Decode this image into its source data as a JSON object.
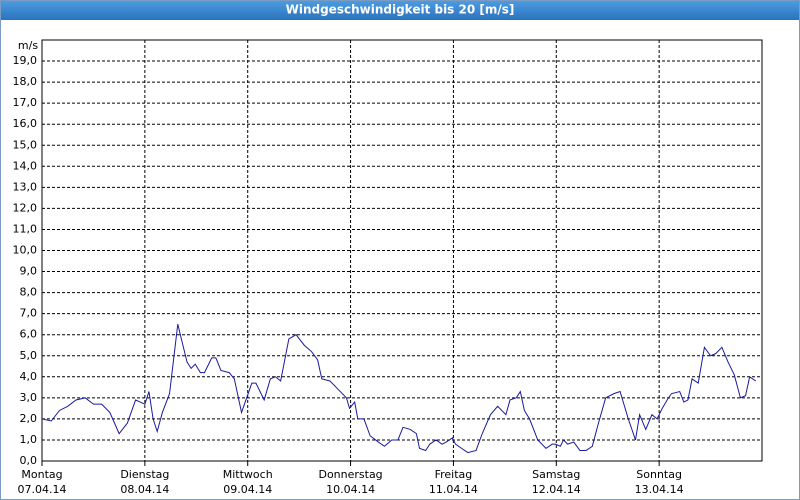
{
  "chart_data": {
    "type": "line",
    "title": "Windgeschwindigkeit bis 20 [m/s]",
    "y_unit": "m/s",
    "xlim": [
      0,
      7
    ],
    "xticks": [
      {
        "value": 0,
        "label": "Montag",
        "date": "07.04.14"
      },
      {
        "value": 1,
        "label": "Dienstag",
        "date": "08.04.14"
      },
      {
        "value": 2,
        "label": "Mittwoch",
        "date": "09.04.14"
      },
      {
        "value": 3,
        "label": "Donnerstag",
        "date": "10.04.14"
      },
      {
        "value": 4,
        "label": "Freitag",
        "date": "11.04.14"
      },
      {
        "value": 5,
        "label": "Samstag",
        "date": "12.04.14"
      },
      {
        "value": 6,
        "label": "Sonntag",
        "date": "13.04.14"
      }
    ],
    "ylim": [
      0,
      20
    ],
    "yticks": [
      {
        "value": 0,
        "label": "0,0"
      },
      {
        "value": 1,
        "label": "1,0"
      },
      {
        "value": 2,
        "label": "2,0"
      },
      {
        "value": 3,
        "label": "3,0"
      },
      {
        "value": 4,
        "label": "4,0"
      },
      {
        "value": 5,
        "label": "5,0"
      },
      {
        "value": 6,
        "label": "6,0"
      },
      {
        "value": 7,
        "label": "7,0"
      },
      {
        "value": 8,
        "label": "8,0"
      },
      {
        "value": 9,
        "label": "9,0"
      },
      {
        "value": 10,
        "label": "10,0"
      },
      {
        "value": 11,
        "label": "11,0"
      },
      {
        "value": 12,
        "label": "12,0"
      },
      {
        "value": 13,
        "label": "13,0"
      },
      {
        "value": 14,
        "label": "14,0"
      },
      {
        "value": 15,
        "label": "15,0"
      },
      {
        "value": 16,
        "label": "16,0"
      },
      {
        "value": 17,
        "label": "17,0"
      },
      {
        "value": 18,
        "label": "18,0"
      },
      {
        "value": 19,
        "label": "19,0"
      }
    ],
    "grid": true,
    "color": "#1a1aa0",
    "x": [
      0,
      0.09,
      0.17,
      0.25,
      0.33,
      0.42,
      0.5,
      0.58,
      0.66,
      0.75,
      0.83,
      0.91,
      1.0,
      1.04,
      1.08,
      1.12,
      1.17,
      1.24,
      1.32,
      1.41,
      1.45,
      1.49,
      1.54,
      1.58,
      1.65,
      1.69,
      1.74,
      1.82,
      1.87,
      1.94,
      1.99,
      2.04,
      2.08,
      2.16,
      2.22,
      2.27,
      2.32,
      2.4,
      2.47,
      2.55,
      2.62,
      2.68,
      2.72,
      2.8,
      2.88,
      2.96,
      2.99,
      3.04,
      3.07,
      3.13,
      3.19,
      3.27,
      3.33,
      3.4,
      3.46,
      3.51,
      3.58,
      3.64,
      3.67,
      3.73,
      3.77,
      3.83,
      3.89,
      3.93,
      3.99,
      4.02,
      4.08,
      4.14,
      4.22,
      4.28,
      4.36,
      4.43,
      4.51,
      4.55,
      4.61,
      4.65,
      4.69,
      4.74,
      4.82,
      4.9,
      4.96,
      4.99,
      5.04,
      5.07,
      5.11,
      5.17,
      5.23,
      5.29,
      5.35,
      5.41,
      5.48,
      5.56,
      5.62,
      5.7,
      5.77,
      5.81,
      5.87,
      5.93,
      5.98,
      6.03,
      6.09,
      6.12,
      6.2,
      6.24,
      6.28,
      6.32,
      6.38,
      6.44,
      6.5,
      6.55,
      6.61,
      6.67,
      6.73,
      6.79,
      6.84,
      6.88,
      6.94
    ],
    "values": [
      2.0,
      1.9,
      2.4,
      2.6,
      2.9,
      3.0,
      2.7,
      2.7,
      2.3,
      1.3,
      1.8,
      2.9,
      2.7,
      3.3,
      2.0,
      1.4,
      2.3,
      3.2,
      6.5,
      4.7,
      4.4,
      4.6,
      4.2,
      4.2,
      4.9,
      4.9,
      4.3,
      4.2,
      3.9,
      2.3,
      3.0,
      3.7,
      3.7,
      2.9,
      3.9,
      4.0,
      3.8,
      5.8,
      6.0,
      5.5,
      5.2,
      4.8,
      3.9,
      3.8,
      3.4,
      3.0,
      2.5,
      2.8,
      2.0,
      2.0,
      1.2,
      0.9,
      0.7,
      1.0,
      1.0,
      1.6,
      1.5,
      1.3,
      0.6,
      0.5,
      0.8,
      1.0,
      0.8,
      0.9,
      1.1,
      0.8,
      0.6,
      0.4,
      0.5,
      1.3,
      2.2,
      2.6,
      2.2,
      2.9,
      3.0,
      3.3,
      2.4,
      2.0,
      1.0,
      0.6,
      0.8,
      0.8,
      0.7,
      1.0,
      0.8,
      0.9,
      0.5,
      0.5,
      0.7,
      1.8,
      3.0,
      3.2,
      3.3,
      2.0,
      1.0,
      2.2,
      1.5,
      2.2,
      2.0,
      2.5,
      3.0,
      3.2,
      3.3,
      2.8,
      2.9,
      3.9,
      3.7,
      5.4,
      5.0,
      5.1,
      5.4,
      4.7,
      4.1,
      3.0,
      3.1,
      4.0,
      3.8
    ]
  }
}
